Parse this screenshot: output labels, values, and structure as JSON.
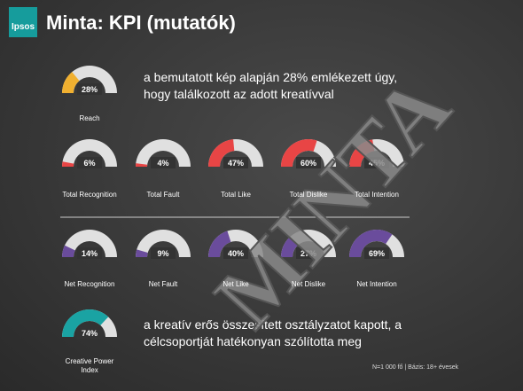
{
  "header": {
    "logo": "Ipsos",
    "title": "Minta: KPI (mutatók)"
  },
  "gauges": [
    {
      "label": "Reach",
      "value": 28,
      "value_label": "28%",
      "color": "#f0b030"
    },
    {
      "label": "Total Recognition",
      "value": 6,
      "value_label": "6%",
      "color": "#e84545"
    },
    {
      "label": "Total Fault",
      "value": 4,
      "value_label": "4%",
      "color": "#e84545"
    },
    {
      "label": "Total Like",
      "value": 47,
      "value_label": "47%",
      "color": "#e84545"
    },
    {
      "label": "Total Dislike",
      "value": 60,
      "value_label": "60%",
      "color": "#e84545"
    },
    {
      "label": "Total Intention",
      "value": 45,
      "value_label": "45%",
      "color": "#e84545"
    },
    {
      "label": "Net Recognition",
      "value": 14,
      "value_label": "14%",
      "color": "#6a4c9c"
    },
    {
      "label": "Net Fault",
      "value": 9,
      "value_label": "9%",
      "color": "#6a4c9c"
    },
    {
      "label": "Net Like",
      "value": 40,
      "value_label": "40%",
      "color": "#6a4c9c"
    },
    {
      "label": "Net Dislike",
      "value": 27,
      "value_label": "27%",
      "color": "#6a4c9c"
    },
    {
      "label": "Net Intention",
      "value": 69,
      "value_label": "69%",
      "color": "#6a4c9c"
    },
    {
      "label": "Creative Power Index",
      "value": 74,
      "value_label": "74%",
      "color": "#1aa3a3"
    }
  ],
  "reach_text": [
    "a bemutatott kép alapján 28% emlékezett úgy,",
    "hogy találkozott az adott kreatívval"
  ],
  "cpi_text": [
    "a kreatív erős összesített osztályzatot kapott, a",
    "célcsoportját hatékonyan szólította meg"
  ],
  "footnote": "N=1 000 fő | Bázis: 18+ évesek",
  "watermark": "MINTA"
}
